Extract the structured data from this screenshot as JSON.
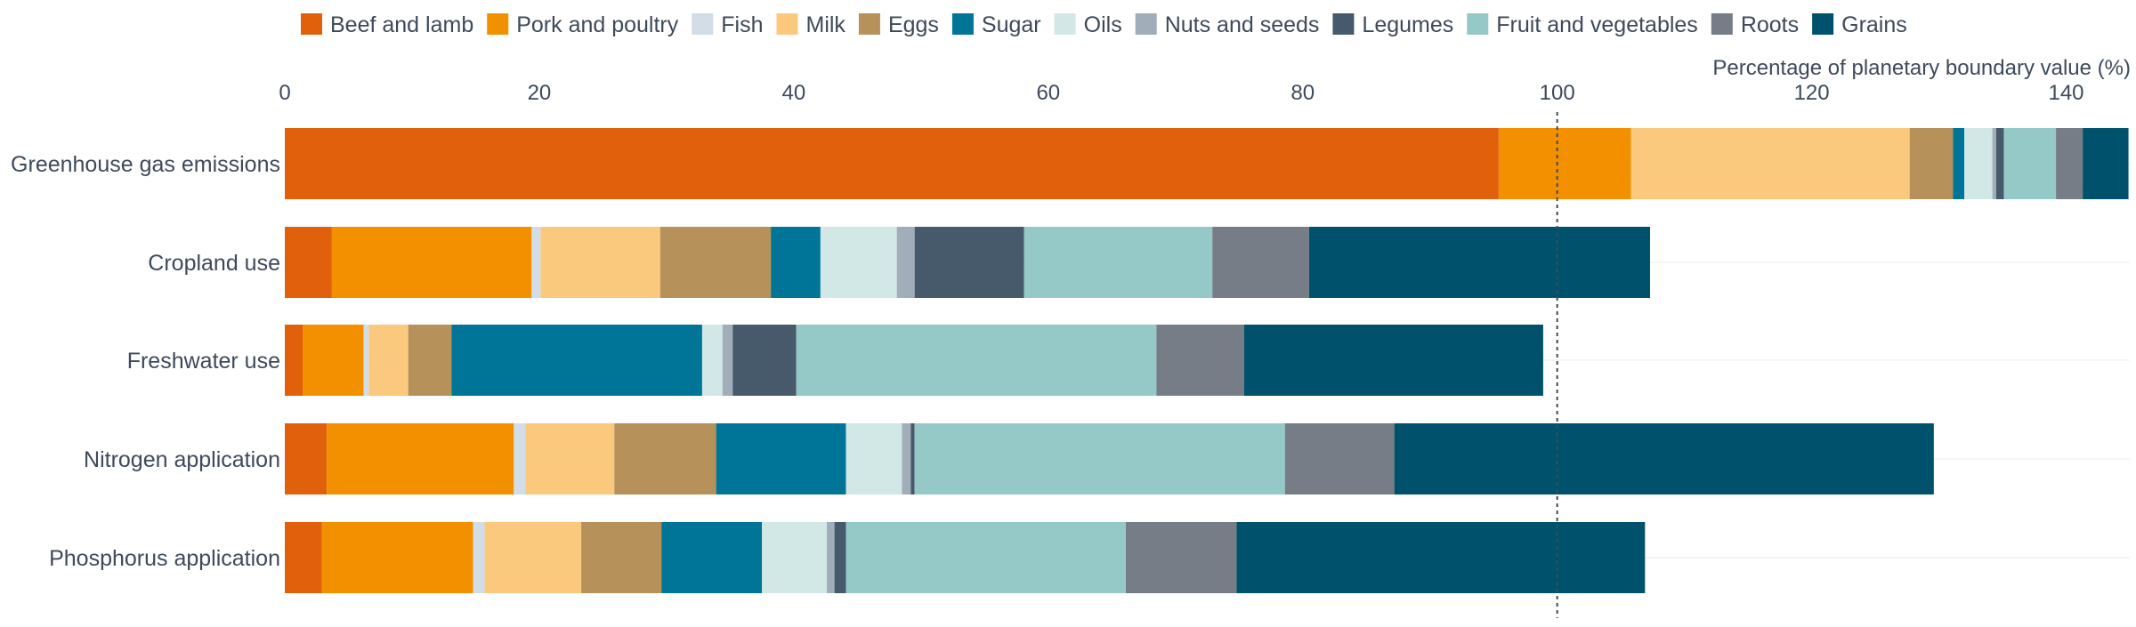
{
  "chart_data": {
    "type": "bar",
    "orientation": "horizontal",
    "stacked": true,
    "title": "",
    "xlabel": "Percentage of planetary boundary value (%)",
    "ylabel": "",
    "xlim": [
      0,
      145
    ],
    "xticks": [
      0,
      20,
      40,
      60,
      80,
      100,
      120,
      140
    ],
    "reference_line": 100,
    "legend_position": "top",
    "grid": false,
    "categories": [
      "Greenhouse gas emissions",
      "Cropland use",
      "Freshwater use",
      "Nitrogen application",
      "Phosphorus application"
    ],
    "series": [
      {
        "name": "Beef and lamb",
        "color": "#e0600b",
        "values": [
          95.4,
          3.7,
          1.4,
          3.3,
          2.9
        ]
      },
      {
        "name": "Pork and poultry",
        "color": "#f39000",
        "values": [
          10.4,
          15.7,
          4.8,
          14.7,
          11.9
        ]
      },
      {
        "name": "Fish",
        "color": "#d1dee7",
        "values": [
          0.0,
          0.7,
          0.4,
          0.9,
          0.9
        ]
      },
      {
        "name": "Milk",
        "color": "#fbc97d",
        "values": [
          21.9,
          9.4,
          3.1,
          7.0,
          7.6
        ]
      },
      {
        "name": "Eggs",
        "color": "#b69159",
        "values": [
          3.4,
          8.7,
          3.4,
          8.0,
          6.3
        ]
      },
      {
        "name": "Sugar",
        "color": "#007598",
        "values": [
          0.9,
          3.9,
          19.7,
          10.2,
          7.9
        ]
      },
      {
        "name": "Oils",
        "color": "#d1e8e6",
        "values": [
          2.2,
          6.0,
          1.6,
          4.4,
          5.1
        ]
      },
      {
        "name": "Nuts and seeds",
        "color": "#a1adb9",
        "values": [
          0.3,
          1.4,
          0.8,
          0.7,
          0.6
        ]
      },
      {
        "name": "Legumes",
        "color": "#475a6b",
        "values": [
          0.6,
          8.6,
          5.0,
          0.3,
          0.9
        ]
      },
      {
        "name": "Fruit and vegetables",
        "color": "#95c9c8",
        "values": [
          4.1,
          14.8,
          28.3,
          29.1,
          22.0
        ]
      },
      {
        "name": "Roots",
        "color": "#767d87",
        "values": [
          2.1,
          7.6,
          6.9,
          8.6,
          8.7
        ]
      },
      {
        "name": "Grains",
        "color": "#00526c",
        "values": [
          3.6,
          26.8,
          23.5,
          42.4,
          32.1
        ]
      }
    ]
  }
}
